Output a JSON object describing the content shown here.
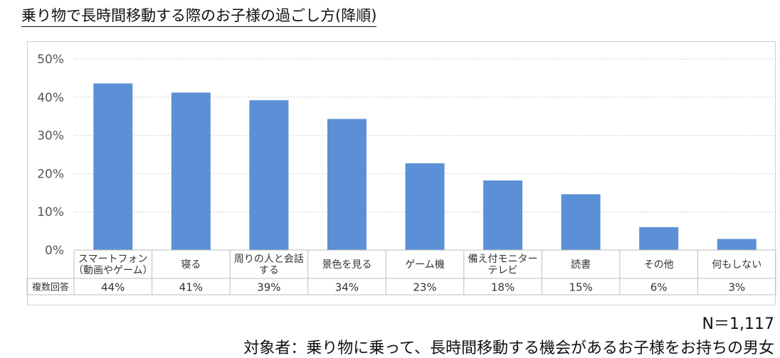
{
  "title": "乗り物で長時間移動する際のお子様の過ごし方(降順)",
  "footer": {
    "n_label": "N＝1,117",
    "target": "対象者：乗り物に乗って、長時間移動する機会があるお子様をお持ちの男女"
  },
  "chart_data": {
    "type": "bar",
    "title": "",
    "categories": [
      [
        "スマートフォン",
        "（動画やゲーム）"
      ],
      [
        "寝る"
      ],
      [
        "周りの人と会話",
        "する"
      ],
      [
        "景色を見る"
      ],
      [
        "ゲーム機"
      ],
      [
        "備え付モニター",
        "テレビ"
      ],
      [
        "読書"
      ],
      [
        "その他"
      ],
      [
        "何もしない"
      ]
    ],
    "values": [
      43.6,
      41.2,
      39.2,
      34.3,
      22.7,
      18.2,
      14.6,
      6.0,
      2.9
    ],
    "table_row_label": "複数回答",
    "value_labels": [
      "44%",
      "41%",
      "39%",
      "34%",
      "23%",
      "18%",
      "15%",
      "6%",
      "3%"
    ],
    "ylim": [
      0,
      50
    ],
    "yticks": [
      "0%",
      "10%",
      "20%",
      "30%",
      "40%",
      "50%"
    ],
    "grid": true,
    "bar_color": "#5b8fd6"
  }
}
